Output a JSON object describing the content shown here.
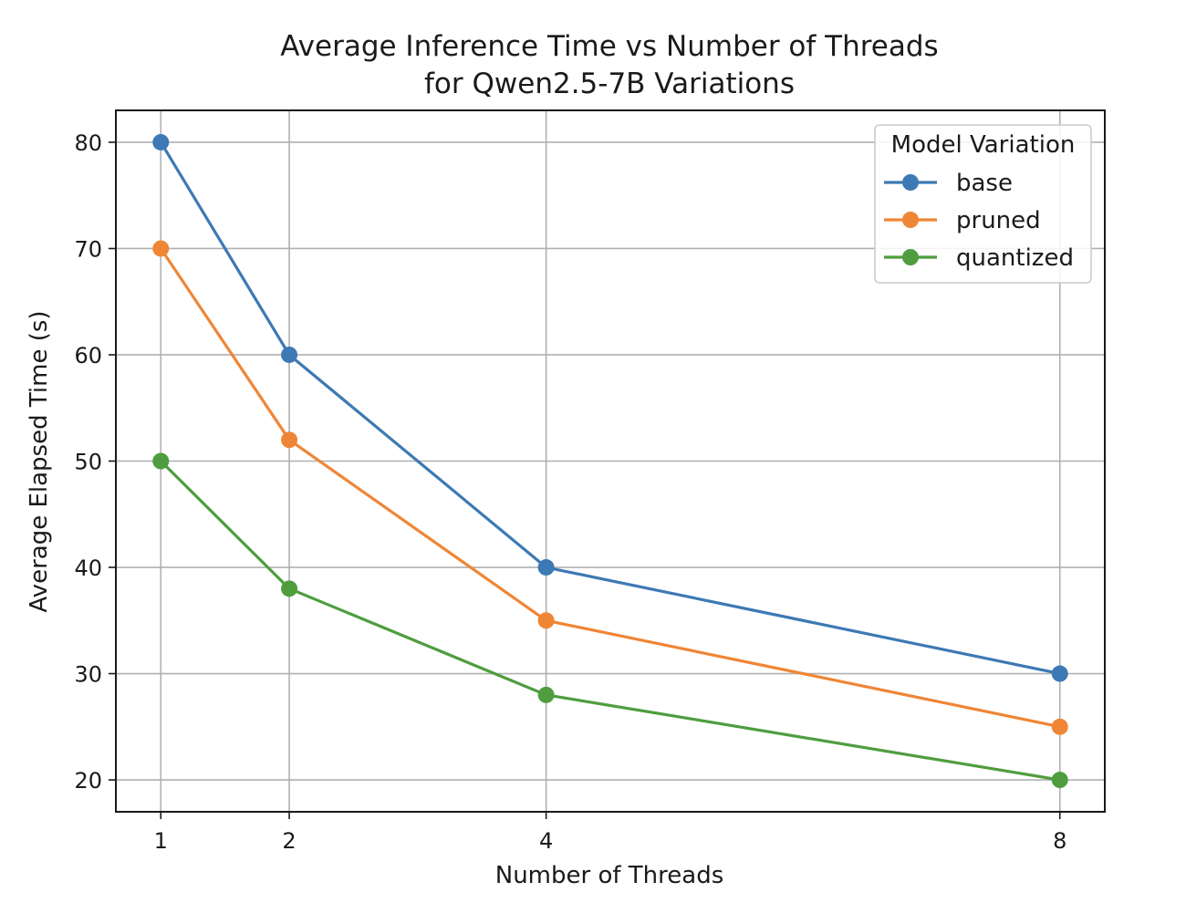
{
  "chart_data": {
    "type": "line",
    "title_lines": [
      "Average Inference Time vs Number of Threads",
      "for Qwen2.5-7B Variations"
    ],
    "xlabel": "Number of Threads",
    "ylabel": "Average Elapsed Time (s)",
    "x": [
      1,
      2,
      4,
      8
    ],
    "x_ticks": [
      1,
      2,
      4,
      8
    ],
    "y_ticks": [
      20,
      30,
      40,
      50,
      60,
      70,
      80
    ],
    "xlim": [
      0.65,
      8.35
    ],
    "ylim": [
      17,
      83
    ],
    "grid": true,
    "legend": {
      "title": "Model Variation",
      "placement": "top-right"
    },
    "series": [
      {
        "name": "base",
        "color": "#3d79b4",
        "values": [
          80,
          60,
          40,
          30
        ]
      },
      {
        "name": "pruned",
        "color": "#ef8636",
        "values": [
          70,
          52,
          35,
          25
        ]
      },
      {
        "name": "quantized",
        "color": "#4f9d3f",
        "values": [
          50,
          38,
          28,
          20
        ]
      }
    ]
  }
}
